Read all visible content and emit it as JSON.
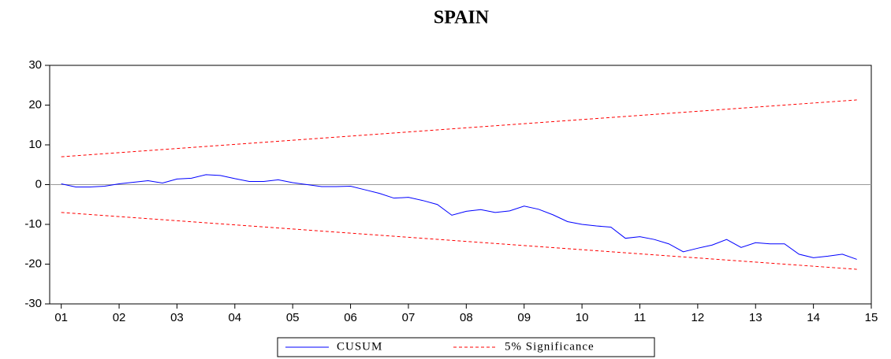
{
  "chart_data": {
    "type": "line",
    "title": "SPAIN",
    "x": [
      1,
      1.25,
      1.5,
      1.75,
      2,
      2.25,
      2.5,
      2.75,
      3,
      3.25,
      3.5,
      3.75,
      4,
      4.25,
      4.5,
      4.75,
      5,
      5.25,
      5.5,
      5.75,
      6,
      6.25,
      6.5,
      6.75,
      7,
      7.25,
      7.5,
      7.75,
      8,
      8.25,
      8.5,
      8.75,
      9,
      9.25,
      9.5,
      9.75,
      10,
      10.25,
      10.5,
      10.75,
      11,
      11.25,
      11.5,
      11.75,
      12,
      12.25,
      12.5,
      12.75,
      13,
      13.25,
      13.5,
      13.75,
      14,
      14.25,
      14.5,
      14.75
    ],
    "series": [
      {
        "name": "CUSUM",
        "color": "#0000ff",
        "values": [
          0.2,
          -0.6,
          -0.6,
          -0.4,
          0.2,
          0.6,
          1.0,
          0.4,
          1.4,
          1.6,
          2.5,
          2.3,
          1.5,
          0.8,
          0.8,
          1.2,
          0.5,
          0,
          -0.5,
          -0.5,
          -0.4,
          -1.3,
          -2.2,
          -3.4,
          -3.2,
          -4.0,
          -5.0,
          -7.7,
          -6.7,
          -6.3,
          -7.0,
          -6.6,
          -5.4,
          -6.2,
          -7.6,
          -9.3,
          -10.0,
          -10.4,
          -10.7,
          -13.5,
          -13.1,
          -13.8,
          -14.9,
          -16.9,
          -16.0,
          -15.2,
          -13.8,
          -15.8,
          -14.6,
          -14.9,
          -14.9,
          -17.5,
          -18.4,
          -18.0,
          -17.5,
          -18.8
        ]
      },
      {
        "name": "5% Significance",
        "color": "#ff0000",
        "dashed": true,
        "x": [
          1,
          14.75
        ],
        "upper": [
          7,
          21.3
        ],
        "lower": [
          -7,
          -21.3
        ]
      }
    ],
    "xlim": [
      0.8,
      15
    ],
    "xticks": [
      {
        "value": 1,
        "label": "01"
      },
      {
        "value": 2,
        "label": "02"
      },
      {
        "value": 3,
        "label": "03"
      },
      {
        "value": 4,
        "label": "04"
      },
      {
        "value": 5,
        "label": "05"
      },
      {
        "value": 6,
        "label": "06"
      },
      {
        "value": 7,
        "label": "07"
      },
      {
        "value": 8,
        "label": "08"
      },
      {
        "value": 9,
        "label": "09"
      },
      {
        "value": 10,
        "label": "10"
      },
      {
        "value": 11,
        "label": "11"
      },
      {
        "value": 12,
        "label": "12"
      },
      {
        "value": 13,
        "label": "13"
      },
      {
        "value": 14,
        "label": "14"
      },
      {
        "value": 15,
        "label": "15"
      }
    ],
    "ylim": [
      -30,
      30
    ],
    "yticks": [
      -30,
      -20,
      -10,
      0,
      10,
      20,
      30
    ],
    "zero_line": true
  }
}
